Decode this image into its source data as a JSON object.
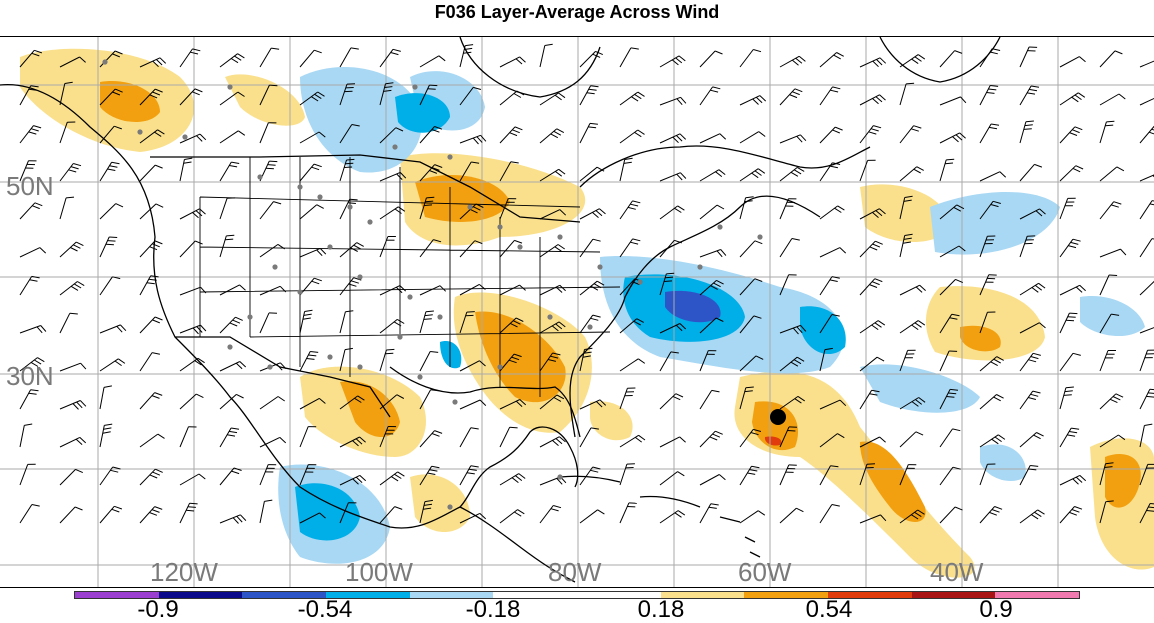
{
  "title": "F036 Layer-Average Across Wind",
  "lat_labels": [
    "50N",
    "30N"
  ],
  "lon_labels": [
    "120W",
    "100W",
    "80W",
    "60W",
    "40W"
  ],
  "colorbar": {
    "tick_labels": [
      "-0.9",
      "-0.54",
      "-0.18",
      "0.18",
      "0.54",
      "0.9"
    ],
    "colors": [
      "#9a3fd0",
      "#0a0a8a",
      "#2e55c8",
      "#00aee8",
      "#a8d8f4",
      "#ffffff",
      "#ffffff",
      "#fae08c",
      "#f2a010",
      "#e03c0c",
      "#a81414",
      "#f07ab0"
    ]
  },
  "colors": {
    "land_line": "#000000",
    "grid_line": "#aaaaaa",
    "station_dot": "#7a7a7a",
    "storm_marker": "#000000"
  }
}
